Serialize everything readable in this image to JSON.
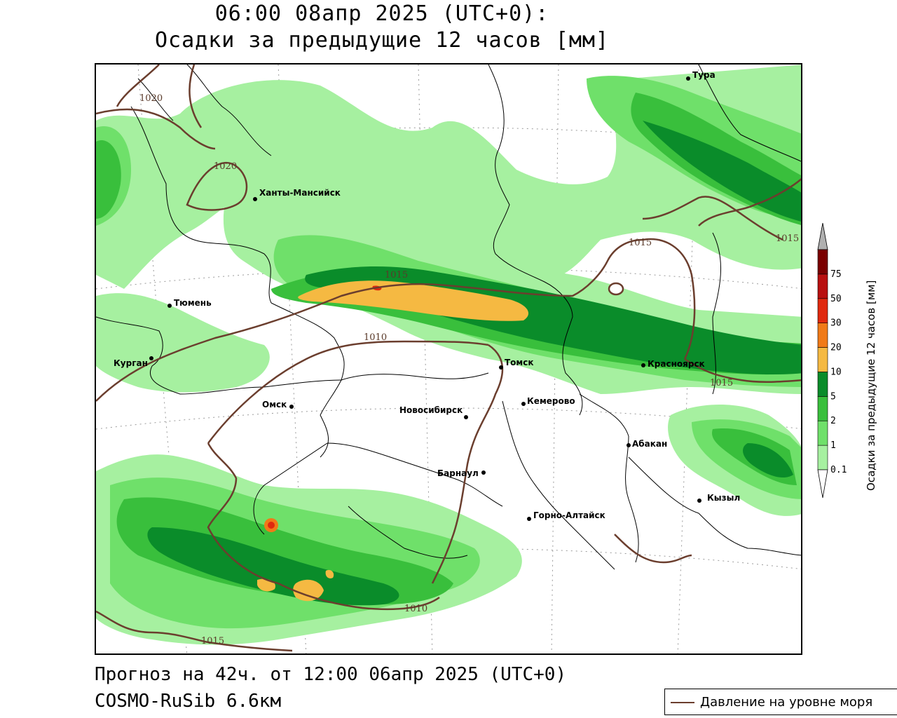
{
  "header": {
    "title_line1": "06:00 08апр 2025 (UTC+0):",
    "title_line2": "Осадки за предыдущие 12 часов [мм]"
  },
  "footer": {
    "forecast": "Прогноз на 42ч. от 12:00 06апр 2025 (UTC+0)",
    "model": "COSMO-RuSib 6.6км"
  },
  "pressure_key": {
    "label": "Давление на уровне моря",
    "color": "#6b3e2e"
  },
  "legend": {
    "title": "Осадки за предыдущие 12 часов [мм]",
    "levels": [
      "0.1",
      "1",
      "2",
      "5",
      "10",
      "20",
      "30",
      "50",
      "75"
    ],
    "colors": [
      "#a6f0a0",
      "#6fe06a",
      "#39bf3c",
      "#0a8c2a",
      "#f5b942",
      "#f07a18",
      "#e0290f",
      "#b81010",
      "#7a0000"
    ],
    "top_color": "#b0b0b0"
  },
  "cities": [
    {
      "name": "Тура"
    },
    {
      "name": "Ханты-Мансийск"
    },
    {
      "name": "Тюмень"
    },
    {
      "name": "Курган"
    },
    {
      "name": "Омск"
    },
    {
      "name": "Новосибирск"
    },
    {
      "name": "Томск"
    },
    {
      "name": "Кемерово"
    },
    {
      "name": "Красноярск"
    },
    {
      "name": "Барнаул"
    },
    {
      "name": "Абакан"
    },
    {
      "name": "Горно-Алтайск"
    },
    {
      "name": "Кызыл"
    }
  ],
  "isobar_labels": [
    "1020",
    "1020",
    "1015",
    "1015",
    "1015",
    "1010",
    "1015",
    "1010",
    "1015"
  ],
  "colors": {
    "precip_light": "#a6f0a0",
    "precip_1": "#6fe06a",
    "precip_2": "#39bf3c",
    "precip_5": "#0a8c2a",
    "precip_10": "#f5b942",
    "precip_20": "#f07a18",
    "precip_30": "#e0290f",
    "isobar": "#6b3e2e",
    "border": "#000000"
  }
}
